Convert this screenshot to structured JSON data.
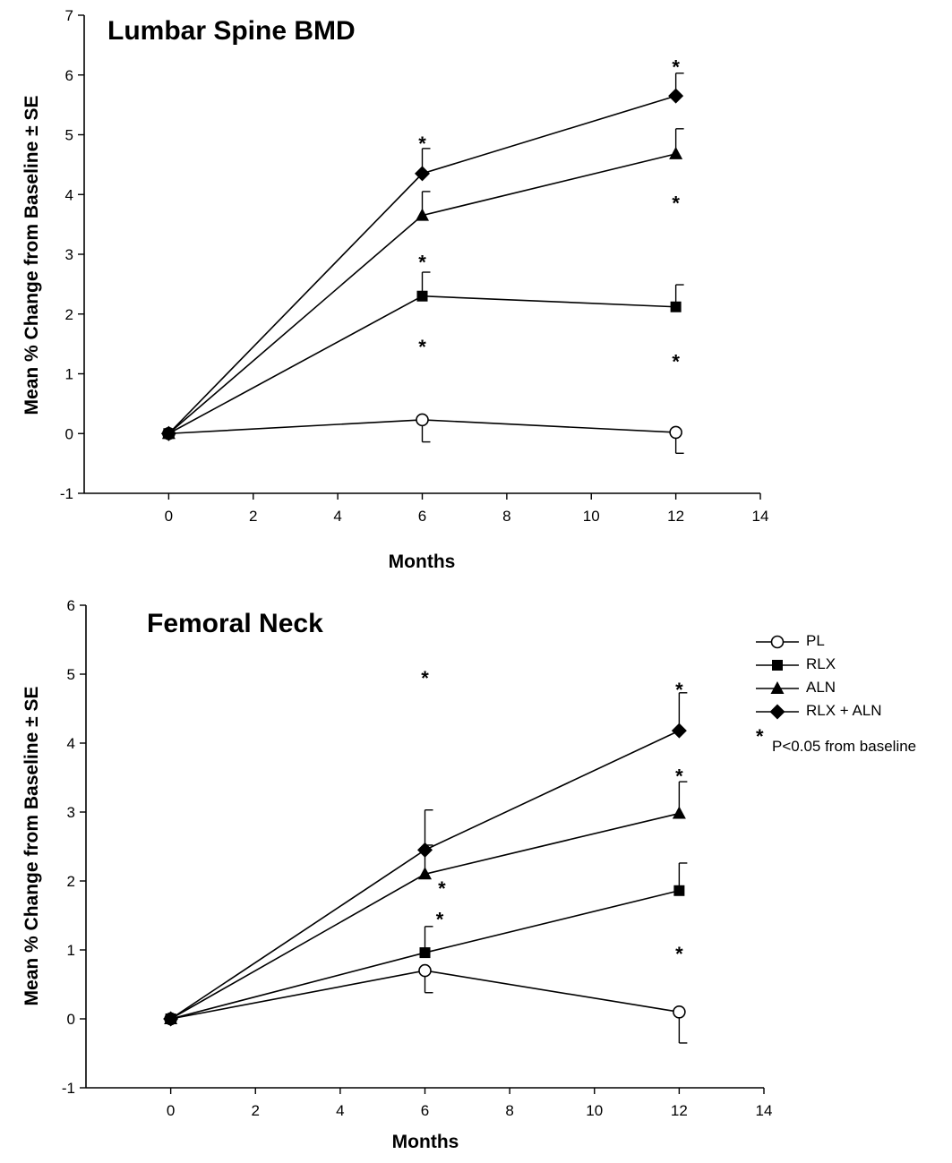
{
  "chart_data": [
    {
      "type": "line",
      "title": "Lumbar Spine BMD",
      "xlabel": "Months",
      "ylabel": "Mean % Change from Baseline ± SE",
      "xlim": [
        -2,
        14
      ],
      "ylim": [
        -1,
        7
      ],
      "xticks": [
        0,
        2,
        4,
        6,
        8,
        10,
        12,
        14
      ],
      "yticks": [
        -1,
        0,
        1,
        2,
        3,
        4,
        5,
        6,
        7
      ],
      "x": [
        0,
        6,
        12
      ],
      "series": [
        {
          "name": "PL",
          "marker": "circle-open",
          "values": [
            0,
            0.23,
            0.02
          ],
          "se": [
            0,
            0.37,
            0.35
          ]
        },
        {
          "name": "RLX",
          "marker": "square",
          "values": [
            0,
            2.3,
            2.12
          ],
          "se": [
            0,
            0.4,
            0.37
          ]
        },
        {
          "name": "ALN",
          "marker": "triangle",
          "values": [
            0,
            3.65,
            4.68
          ],
          "se": [
            0,
            0.4,
            0.42
          ]
        },
        {
          "name": "RLX + ALN",
          "marker": "diamond",
          "values": [
            0,
            4.35,
            5.65
          ],
          "se": [
            0,
            0.42,
            0.38
          ]
        }
      ],
      "annotations": [
        {
          "text": "*",
          "x": 6.0,
          "y": 4.92
        },
        {
          "text": "*",
          "x": 6.0,
          "y": 2.93
        },
        {
          "text": "*",
          "x": 6.0,
          "y": 1.52
        },
        {
          "text": "*",
          "x": 12.0,
          "y": 6.2
        },
        {
          "text": "*",
          "x": 12.0,
          "y": 3.92
        },
        {
          "text": "*",
          "x": 12.0,
          "y": 1.27
        }
      ]
    },
    {
      "type": "line",
      "title": "Femoral Neck",
      "xlabel": "Months",
      "ylabel": "Mean % Change from Baseline ± SE",
      "xlim": [
        -2,
        14
      ],
      "ylim": [
        -1,
        6
      ],
      "xticks": [
        0,
        2,
        4,
        6,
        8,
        10,
        12,
        14
      ],
      "yticks": [
        -1,
        0,
        1,
        2,
        3,
        4,
        5,
        6
      ],
      "x": [
        0,
        6,
        12
      ],
      "series": [
        {
          "name": "PL",
          "marker": "circle-open",
          "values": [
            0,
            0.7,
            0.1
          ],
          "se": [
            0,
            0.32,
            0.45
          ]
        },
        {
          "name": "RLX",
          "marker": "square",
          "values": [
            0,
            0.96,
            1.86
          ],
          "se": [
            0,
            0.38,
            0.4
          ]
        },
        {
          "name": "ALN",
          "marker": "triangle",
          "values": [
            0,
            2.1,
            2.98
          ],
          "se": [
            0,
            0.42,
            0.46
          ]
        },
        {
          "name": "RLX + ALN",
          "marker": "diamond",
          "values": [
            0,
            2.45,
            4.18
          ],
          "se": [
            0,
            0.58,
            0.55
          ]
        }
      ],
      "annotations": [
        {
          "text": "*",
          "x": 6.0,
          "y": 5.0
        },
        {
          "text": "*",
          "x": 6.4,
          "y": 1.95
        },
        {
          "text": "*",
          "x": 6.35,
          "y": 1.5
        },
        {
          "text": "*",
          "x": 12.0,
          "y": 3.58
        },
        {
          "text": "*",
          "x": 12.0,
          "y": 4.83
        },
        {
          "text": "*",
          "x": 12.0,
          "y": 1.0
        }
      ]
    }
  ],
  "legend": {
    "placement": "right",
    "entries": [
      {
        "label": "PL",
        "marker": "circle-open"
      },
      {
        "label": "RLX",
        "marker": "square"
      },
      {
        "label": "ALN",
        "marker": "triangle"
      },
      {
        "label": "RLX + ALN",
        "marker": "diamond"
      }
    ],
    "note_symbol": "*",
    "note": "P<0.05 from baseline"
  }
}
